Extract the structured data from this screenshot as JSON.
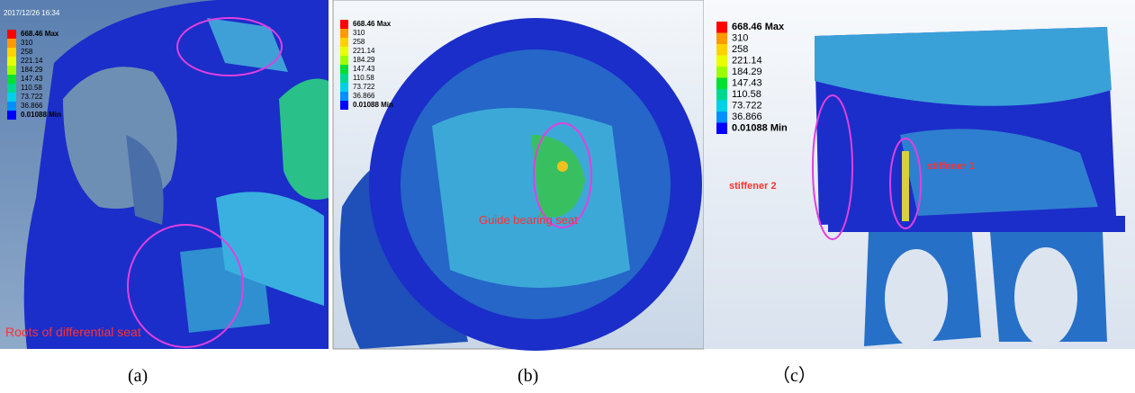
{
  "panels": [
    {
      "timestamp": "2017/12/26 16:34",
      "legend": [
        "668.46 Max",
        "310",
        "258",
        "221.14",
        "184.29",
        "147.43",
        "110.58",
        "73.722",
        "36.866",
        "0.01088 Min"
      ],
      "annotation": "Roots of differential seat",
      "caption": "(a)"
    },
    {
      "legend": [
        "668.46 Max",
        "310",
        "258",
        "221.14",
        "184.29",
        "147.43",
        "110.58",
        "73.722",
        "36.866",
        "0.01088 Min"
      ],
      "annotation": "Guide bearing seat",
      "caption": "(b)"
    },
    {
      "legend": [
        "668.46 Max",
        "310",
        "258",
        "221.14",
        "184.29",
        "147.43",
        "110.58",
        "73.722",
        "36.866",
        "0.01088 Min"
      ],
      "annotations": [
        "stiffener 1",
        "stiffener 2"
      ],
      "caption": "（c）"
    }
  ]
}
